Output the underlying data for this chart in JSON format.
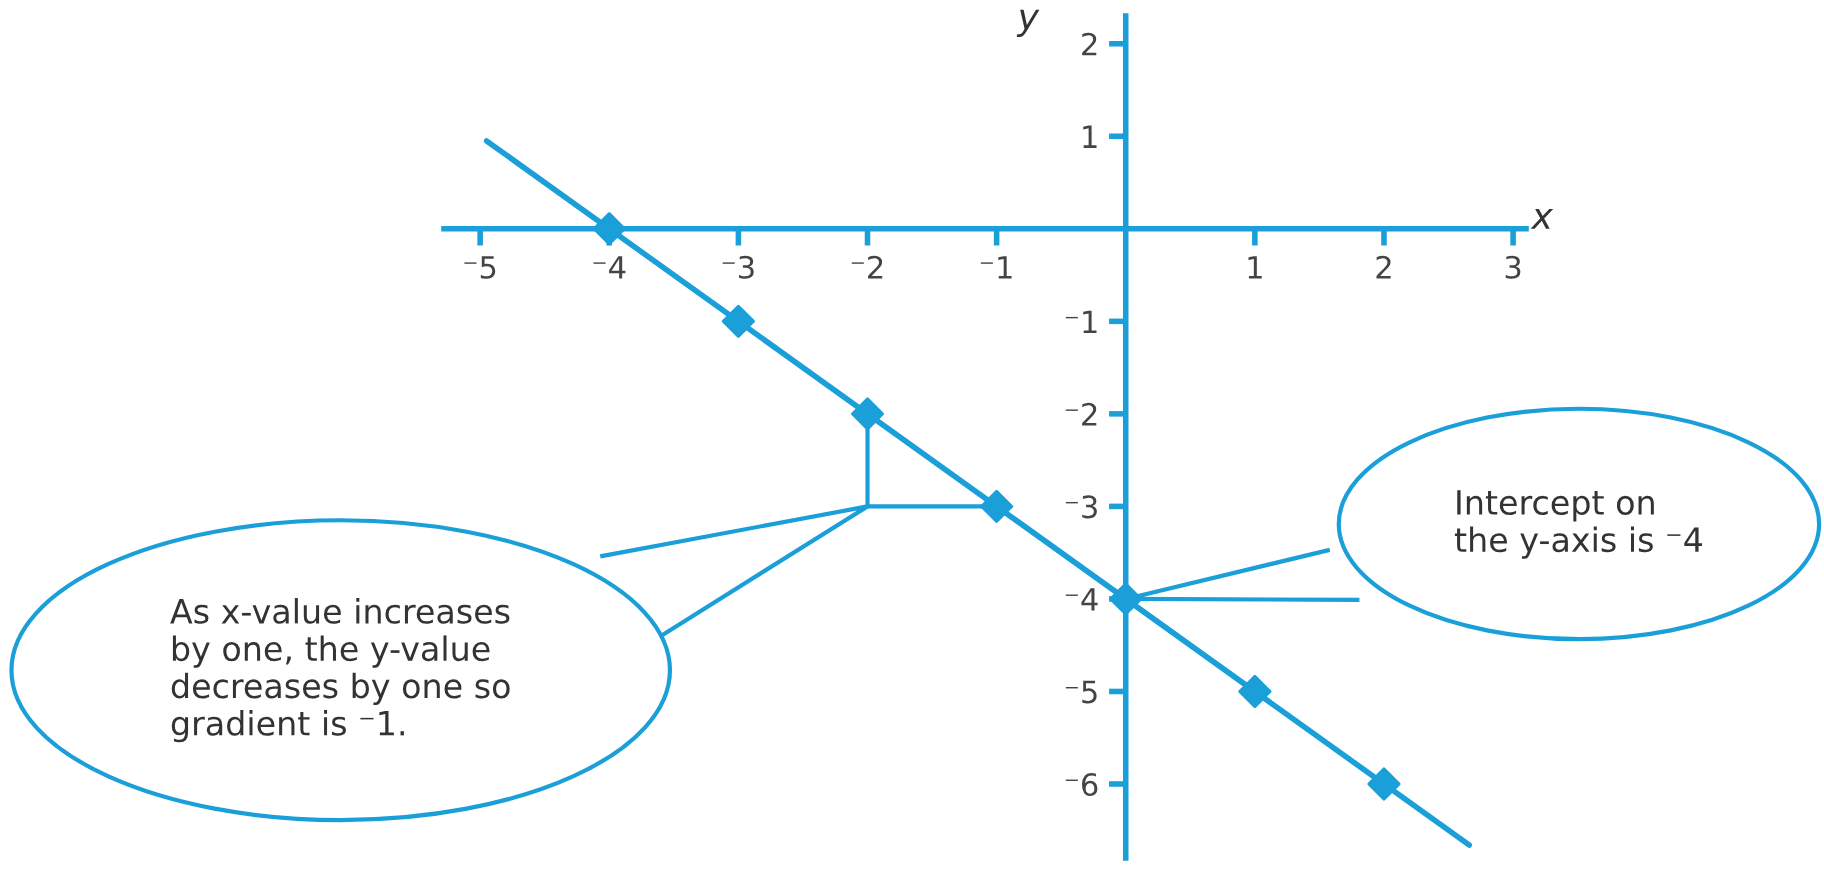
{
  "chart_data": {
    "type": "line",
    "xlabel": "x",
    "ylabel": "y",
    "xlim": [
      -5.28,
      3.1
    ],
    "ylim": [
      -6.8,
      2.3
    ],
    "xticks": [
      {
        "value": -5,
        "label": "⁻5"
      },
      {
        "value": -4,
        "label": "⁻4"
      },
      {
        "value": -3,
        "label": "⁻3"
      },
      {
        "value": -2,
        "label": "⁻2"
      },
      {
        "value": -1,
        "label": "⁻1"
      },
      1,
      2,
      3
    ],
    "yticks": [
      {
        "value": -6,
        "label": "⁻6"
      },
      {
        "value": -5,
        "label": "⁻5"
      },
      {
        "value": -4,
        "label": "⁻4"
      },
      {
        "value": -3,
        "label": "⁻3"
      },
      {
        "value": -2,
        "label": "⁻2"
      },
      {
        "value": -1,
        "label": "⁻1"
      },
      1,
      2
    ],
    "series": [
      {
        "color": "#1a9fd9",
        "x": [
          -4.95,
          2.66
        ],
        "values": [
          0.95,
          -6.66
        ]
      },
      {
        "type": "scatter",
        "marker": "diamond",
        "color": "#1a9fd9",
        "x": [
          -4,
          -3,
          -2,
          -1,
          0,
          1,
          2
        ],
        "values": [
          0,
          -1,
          -2,
          -3,
          -4,
          -5,
          -6
        ]
      }
    ],
    "annotations": [
      "As x-value increases\nby one, the y-value\ndecreases by one so\ngradient is ⁻1.",
      "Intercept on\nthe y-axis is ⁻4"
    ],
    "grid": false,
    "legend": false
  }
}
